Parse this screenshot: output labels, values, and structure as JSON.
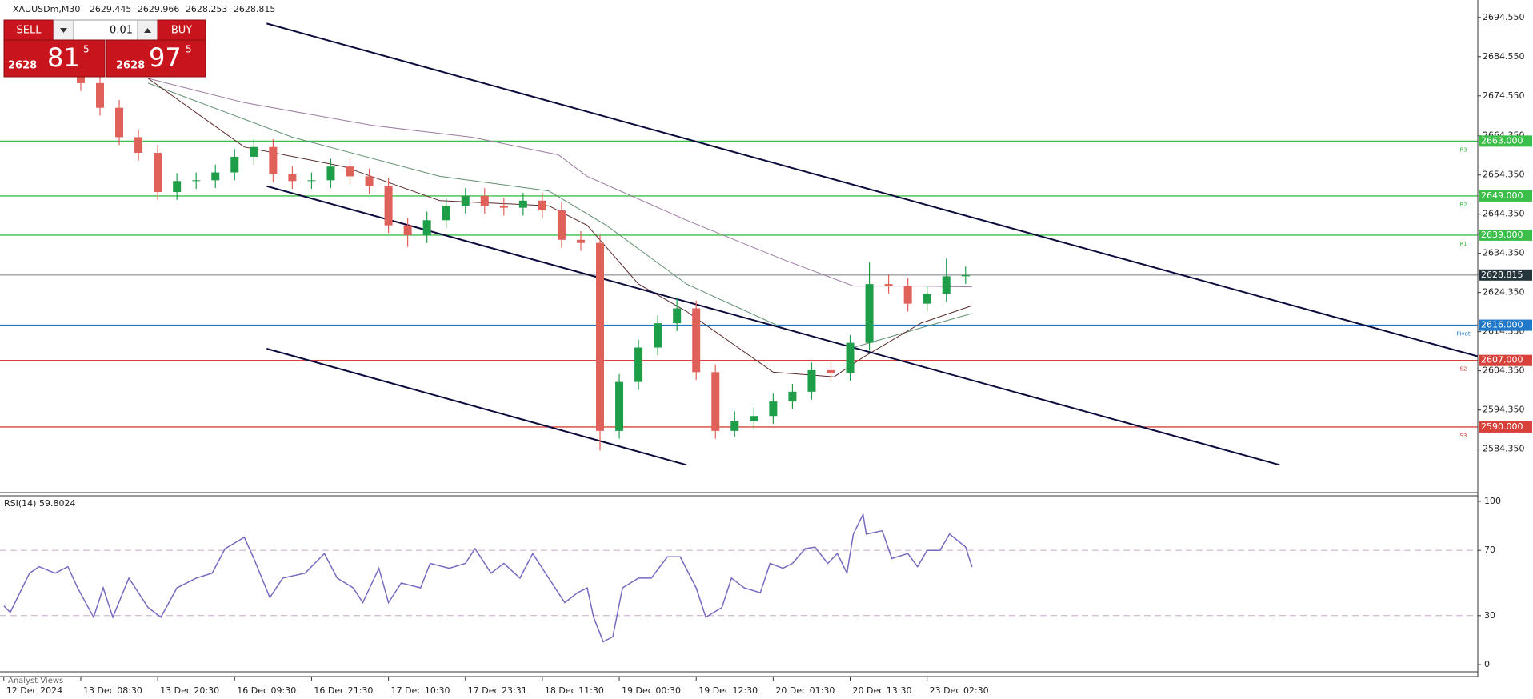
{
  "chart_data": [
    {
      "type": "candlestick",
      "title": "XAUUSDm,M30",
      "quote": [
        2629.445,
        2629.966,
        2628.253,
        2628.815
      ],
      "up_color": "#1f9e4a",
      "down_color": "#e0605a",
      "x": [
        24,
        30,
        36,
        42,
        48,
        54,
        60,
        66,
        72,
        78,
        84,
        90,
        96,
        102,
        108,
        114,
        120,
        126,
        132,
        138,
        144,
        150,
        156,
        162,
        168,
        174,
        180,
        186,
        192,
        198,
        204,
        210,
        216,
        222,
        228,
        234,
        240,
        246,
        252,
        258,
        264,
        270,
        276,
        282,
        288,
        294,
        300
      ],
      "open": [
        2682,
        2677.8,
        2671.5,
        2664,
        2660,
        2650,
        2652.8,
        2653,
        2655,
        2659,
        2661.5,
        2654.5,
        2652.8,
        2653,
        2656.5,
        2654,
        2651.5,
        2641.5,
        2639,
        2642.8,
        2646.5,
        2649,
        2646.5,
        2646,
        2647.8,
        2645.3,
        2637.8,
        2637,
        2589,
        2601.5,
        2610.3,
        2616.5,
        2620.3,
        2604,
        2589,
        2591.5,
        2592.8,
        2596.5,
        2599,
        2604.5,
        2603.8,
        2611.5,
        2626.5,
        2626,
        2621.5,
        2624,
        2628.5
      ],
      "high": [
        2684,
        2679.8,
        2673.5,
        2666,
        2662,
        2654.8,
        2655,
        2657,
        2661,
        2663.5,
        2663.5,
        2656.5,
        2655,
        2658.5,
        2658.5,
        2656,
        2653.5,
        2643.5,
        2645,
        2648.5,
        2651,
        2651,
        2648.5,
        2649.8,
        2649.8,
        2647.3,
        2640,
        2639,
        2603.5,
        2612.3,
        2618.5,
        2623,
        2622.3,
        2606,
        2594,
        2595,
        2598.5,
        2601,
        2606.5,
        2606.5,
        2613.5,
        2632,
        2629,
        2628,
        2626,
        2633,
        2631
      ],
      "low": [
        2675.8,
        2669.5,
        2662,
        2658,
        2648,
        2648,
        2650.8,
        2651,
        2653,
        2657,
        2652.5,
        2650.8,
        2650.8,
        2651,
        2652,
        2649.5,
        2639.5,
        2636,
        2637,
        2640.8,
        2644.5,
        2644.5,
        2644,
        2644,
        2643.3,
        2635.8,
        2635,
        2584,
        2587,
        2599.5,
        2608.3,
        2614.5,
        2602,
        2587,
        2587.5,
        2589.5,
        2590.8,
        2594.5,
        2597,
        2601.8,
        2601.8,
        2609.5,
        2624,
        2619.5,
        2619.5,
        2622,
        2626.5
      ],
      "close": [
        2677.8,
        2671.5,
        2664,
        2660,
        2650,
        2652.8,
        2653,
        2655,
        2659,
        2661.5,
        2654.5,
        2652.8,
        2653,
        2656.5,
        2654,
        2651.5,
        2641.5,
        2639,
        2642.8,
        2646.5,
        2649,
        2646.5,
        2646,
        2647.8,
        2645.3,
        2637.8,
        2637,
        2589,
        2601.5,
        2610.3,
        2616.5,
        2620.3,
        2604,
        2589,
        2591.5,
        2592.8,
        2596.5,
        2599,
        2604.5,
        2603.8,
        2611.5,
        2626.5,
        2626,
        2621.5,
        2624,
        2628.5,
        2628.8
      ],
      "xlim": [
        -1.2,
        459.8
      ],
      "xticks": [
        {
          "value": 0,
          "label": "12 Dec 2024"
        },
        {
          "value": 24,
          "label": "13 Dec 08:30"
        },
        {
          "value": 48,
          "label": "13 Dec 20:30"
        },
        {
          "value": 72,
          "label": "16 Dec 09:30"
        },
        {
          "value": 96,
          "label": "16 Dec 21:30"
        },
        {
          "value": 120,
          "label": "17 Dec 10:30"
        },
        {
          "value": 144,
          "label": "17 Dec 23:31"
        },
        {
          "value": 168,
          "label": "18 Dec 11:30"
        },
        {
          "value": 192,
          "label": "19 Dec 00:30"
        },
        {
          "value": 216,
          "label": "19 Dec 12:30"
        },
        {
          "value": 240,
          "label": "20 Dec 01:30"
        },
        {
          "value": 264,
          "label": "20 Dec 13:30"
        },
        {
          "value": 288,
          "label": "23 Dec 02:30"
        }
      ],
      "ylim": [
        2573.25,
        2699
      ],
      "yticks": [
        {
          "value": 2694.55,
          "label": "2694.550"
        },
        {
          "value": 2684.55,
          "label": "2684.550"
        },
        {
          "value": 2674.55,
          "label": "2674.550"
        },
        {
          "value": 2664.35,
          "label": "2664.350"
        },
        {
          "value": 2654.35,
          "label": "2654.350"
        },
        {
          "value": 2644.35,
          "label": "2644.350"
        },
        {
          "value": 2634.35,
          "label": "2634.350"
        },
        {
          "value": 2624.35,
          "label": "2624.350"
        },
        {
          "value": 2614.35,
          "label": "2614.350"
        },
        {
          "value": 2604.35,
          "label": "2604.350"
        },
        {
          "value": 2594.35,
          "label": "2594.350"
        },
        {
          "value": 2584.35,
          "label": "2584.350"
        }
      ],
      "moving_averages": [
        {
          "color": "#9a7aa0",
          "x": [
            45,
            75,
            115,
            146,
            173,
            182,
            213,
            243,
            265,
            286,
            302
          ],
          "values": [
            2679,
            2672.8,
            2667,
            2664,
            2659.5,
            2654,
            2642.8,
            2632.8,
            2626,
            2626,
            2625.8
          ]
        },
        {
          "color": "#5f8f70",
          "x": [
            45,
            90,
            136,
            170,
            188,
            213,
            243,
            265,
            286,
            302
          ],
          "values": [
            2677.8,
            2664,
            2654,
            2650.3,
            2641.5,
            2626.5,
            2615.3,
            2610.3,
            2615.3,
            2619
          ]
        },
        {
          "color": "#5a2a2a",
          "x": [
            45,
            75,
            106,
            136,
            170,
            182,
            198,
            213,
            240,
            259,
            268,
            286,
            302
          ],
          "values": [
            2679,
            2661.5,
            2656.5,
            2647.8,
            2646.5,
            2641.5,
            2626.5,
            2619.5,
            2604,
            2602.8,
            2607.8,
            2616.5,
            2621
          ]
        }
      ],
      "trendlines": [
        {
          "color": "#0a0a3c",
          "x": [
            82,
            460
          ],
          "y": [
            2693,
            2608
          ]
        },
        {
          "color": "#0a0a3c",
          "x": [
            82,
            398
          ],
          "y": [
            2651.5,
            2580.3
          ]
        },
        {
          "color": "#0a0a3c",
          "x": [
            82,
            213
          ],
          "y": [
            2610,
            2580.3
          ]
        }
      ],
      "levels": [
        {
          "name": "R3",
          "value": 2663,
          "label": "2663.000",
          "color": "#3cbf4a"
        },
        {
          "name": "R2",
          "value": 2649,
          "label": "2649.000",
          "color": "#3cbf4a"
        },
        {
          "name": "R1",
          "value": 2639,
          "label": "2639.000",
          "color": "#3cbf4a"
        },
        {
          "value": 2628.815,
          "label": "2628.815",
          "color": "#9aa0a4"
        },
        {
          "name": "Pivot",
          "value": 2616,
          "label": "2616.000",
          "color": "#1f78c8"
        },
        {
          "name": "S2",
          "value": 2607,
          "label": "2607.000",
          "color": "#d8403a"
        },
        {
          "name": "S3",
          "value": 2590,
          "label": "2590.000",
          "color": "#d8403a"
        }
      ]
    },
    {
      "type": "line",
      "title": "RSI(14) 59.8024",
      "x": [
        0,
        2,
        8,
        11,
        16,
        20,
        23,
        28,
        31,
        34,
        39,
        45,
        49,
        54,
        60,
        65,
        69,
        75,
        78,
        83,
        87,
        94,
        100,
        104,
        109,
        112,
        117,
        120,
        124,
        130,
        133,
        139,
        144,
        147,
        152,
        156,
        161,
        165,
        170,
        175,
        179,
        182,
        184,
        187,
        190,
        193,
        198,
        202,
        207,
        211,
        216,
        219,
        224,
        227,
        231,
        236,
        239,
        243,
        246,
        250,
        253,
        257,
        260,
        263,
        265,
        268,
        269,
        274,
        277,
        282,
        285,
        288,
        292,
        295,
        300,
        302
      ],
      "series": [
        {
          "color": "#7a68c0",
          "values": [
            36,
            32,
            56,
            60,
            56,
            60,
            47,
            29,
            47,
            29,
            53,
            35,
            29,
            47,
            53,
            56,
            71,
            78,
            65,
            41,
            53,
            56,
            68,
            53,
            47,
            38,
            59,
            38,
            50,
            47,
            62,
            59,
            62,
            71,
            56,
            62,
            53,
            68,
            53,
            38,
            44,
            47,
            29,
            14,
            17,
            47,
            53,
            53,
            66,
            66,
            47,
            29,
            35,
            53,
            47,
            44,
            62,
            59,
            62,
            71,
            72,
            62,
            68,
            56,
            80,
            92,
            80,
            82,
            65,
            68,
            60,
            70,
            70,
            80,
            72,
            59.8
          ]
        }
      ],
      "ylim": [
        -4.4,
        103.4
      ],
      "yticks": [
        100,
        70,
        30,
        0
      ],
      "levels": [
        70,
        30
      ],
      "level_color": "#c8a8c8"
    }
  ],
  "trade_panel": {
    "sell": "SELL",
    "buy": "BUY",
    "lot": "0.01",
    "bid": {
      "big": "2628",
      "pips": "81",
      "point": "5"
    },
    "ask": {
      "big": "2628",
      "pips": "97",
      "point": "5"
    }
  },
  "footer": {
    "tab": "Analyst Views"
  }
}
